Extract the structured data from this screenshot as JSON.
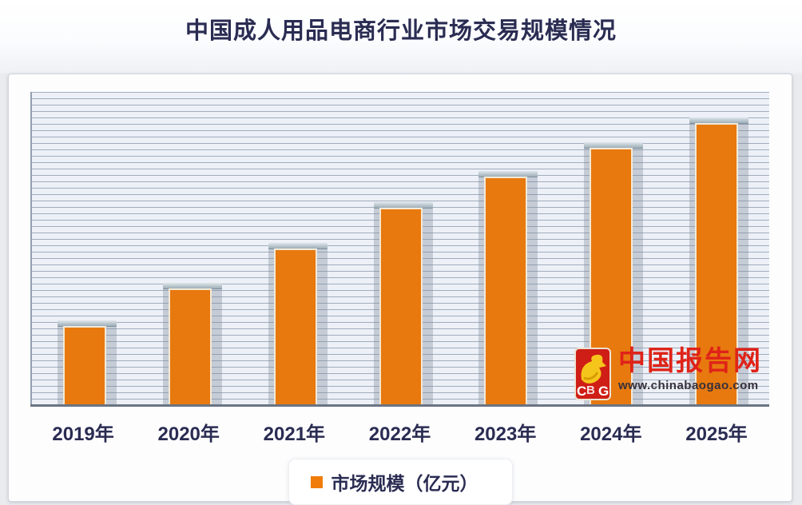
{
  "page": {
    "title": "中国成人用品电商行业市场交易规模情况"
  },
  "chart_data": {
    "type": "bar",
    "title": "中国成人用品电商行业市场交易规模情况",
    "categories": [
      "2019年",
      "2020年",
      "2021年",
      "2022年",
      "2023年",
      "2024年",
      "2025年"
    ],
    "series": [
      {
        "name": "市场规模（亿元）",
        "values_pct_of_plot_height": [
          25,
          37,
          50,
          63,
          73,
          82,
          90
        ]
      }
    ],
    "y_axis_tick_labels_visible": false,
    "x_axis_labels": [
      "2019年",
      "2020年",
      "2021年",
      "2022年",
      "2023年",
      "2024年",
      "2025年"
    ],
    "legend_position": "bottom-center",
    "grid": "dense horizontal gridlines, no y tick labels",
    "bar_color": "#e8790f",
    "bar_border_color": "#f3e9d6"
  },
  "legend": {
    "label": "市场规模（亿元）",
    "swatch_color": "#f07c0a"
  },
  "watermark": {
    "logo_letters": "CBG",
    "site_name": "中国报告网",
    "url": "www.chinabaogao.com"
  },
  "colors": {
    "title_text": "#2a2c52",
    "axis_label_text": "#2a2c52",
    "bar_orange": "#e8790f",
    "watermark_red": "#df2318",
    "plot_background": "#edf1f7",
    "gridline": "#8a98ae"
  }
}
